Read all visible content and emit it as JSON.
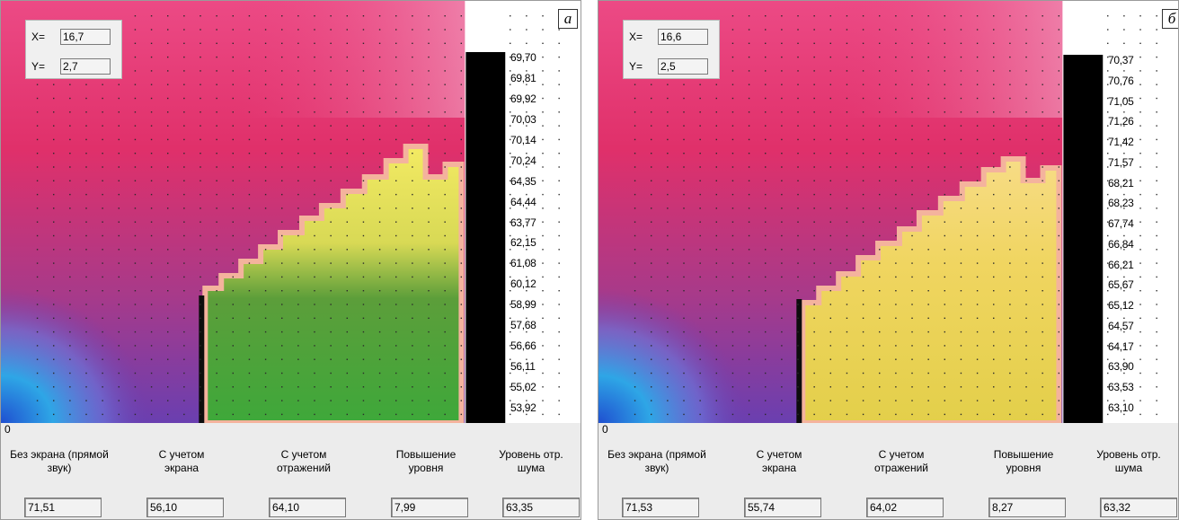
{
  "panels": [
    {
      "letter": "a",
      "x_label": "X=",
      "y_label": "Y=",
      "x_value": "16,7",
      "y_value": "2,7",
      "scale": [
        "69,70",
        "69,81",
        "69,92",
        "70,03",
        "70,14",
        "70,24",
        "64,35",
        "64,44",
        "63,77",
        "62,15",
        "61,08",
        "60,12",
        "58,99",
        "57,68",
        "56,66",
        "56,11",
        "55,02",
        "53,92"
      ],
      "zero": "0",
      "headers": [
        "Без экрана (прямой звук)",
        "С учетом экрана",
        "С учетом отражений",
        "Повышение уровня",
        "Уровень отр. шума"
      ],
      "values": [
        "71,51",
        "56,10",
        "64,10",
        "7,99",
        "63,35"
      ],
      "region_colors": {
        "upper": "#e8356f",
        "lower_left": "#6a4fb5",
        "source": "#2aa7e0",
        "shadow_top": "#e8d84a",
        "shadow_bottom": "#3fa83a"
      }
    },
    {
      "letter": "б",
      "x_label": "X=",
      "y_label": "Y=",
      "x_value": "16,6",
      "y_value": "2,5",
      "scale": [
        "70,37",
        "70,76",
        "71,05",
        "71,26",
        "71,42",
        "71,57",
        "68,21",
        "68,23",
        "67,74",
        "66,84",
        "66,21",
        "65,67",
        "65,12",
        "64,57",
        "64,17",
        "63,90",
        "63,53",
        "63,10"
      ],
      "zero": "0",
      "headers": [
        "Без экрана (прямой звук)",
        "С учетом экрана",
        "С учетом отражений",
        "Повышение уровня",
        "Уровень отр. шума"
      ],
      "values": [
        "71,53",
        "55,74",
        "64,02",
        "8,27",
        "63,32"
      ],
      "region_colors": {
        "upper": "#e8356f",
        "lower_left": "#6a4fb5",
        "source": "#2aa7e0",
        "shadow_top": "#f1d45a",
        "shadow_bottom": "#e8d04a"
      }
    }
  ]
}
